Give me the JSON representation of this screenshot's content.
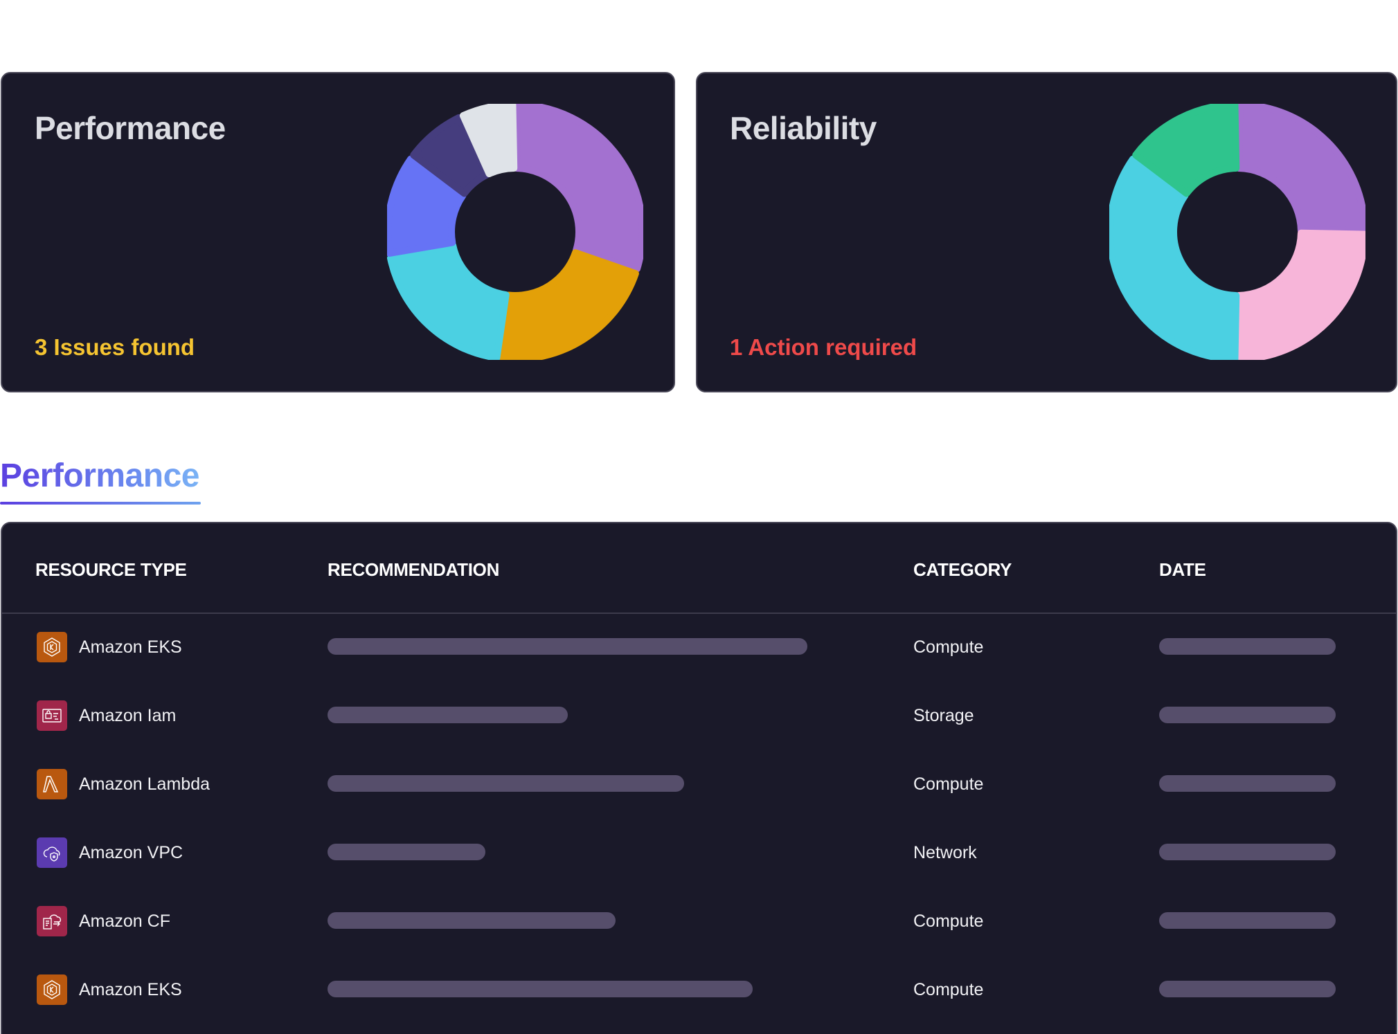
{
  "cards": {
    "performance": {
      "title": "Performance",
      "status": "3 Issues found",
      "status_color": "#f5c431",
      "segments": [
        {
          "color": "#a371d0",
          "value": 30
        },
        {
          "color": "#e3a008",
          "value": 22
        },
        {
          "color": "#4bd0e2",
          "value": 20
        },
        {
          "color": "#6673f5",
          "value": 13
        },
        {
          "color": "#453d7e",
          "value": 8
        },
        {
          "color": "#dfe3e8",
          "value": 7
        }
      ]
    },
    "reliability": {
      "title": "Reliability",
      "status": "1 Action required",
      "status_color": "#ef4a4a",
      "segments": [
        {
          "color": "#a371d0",
          "value": 25
        },
        {
          "color": "#f7b5d9",
          "value": 25
        },
        {
          "color": "#4bd0e2",
          "value": 35
        },
        {
          "color": "#2fc48d",
          "value": 15
        }
      ]
    }
  },
  "section": {
    "title": "Performance"
  },
  "table": {
    "headers": {
      "resource_type": "RESOURCE TYPE",
      "recommendation": "RECOMMENDATION",
      "category": "CATEGORY",
      "date": "DATE"
    },
    "rows": [
      {
        "resource": "Amazon EKS",
        "icon": "eks-icon",
        "icon_color": "#b9580f",
        "category": "Compute",
        "recommendation_fill": 0.7
      },
      {
        "resource": "Amazon Iam",
        "icon": "iam-icon",
        "icon_color": "#a0264a",
        "category": "Storage",
        "recommendation_fill": 0.35
      },
      {
        "resource": "Amazon Lambda",
        "icon": "lambda-icon",
        "icon_color": "#b9580f",
        "category": "Compute",
        "recommendation_fill": 0.52
      },
      {
        "resource": "Amazon VPC",
        "icon": "vpc-icon",
        "icon_color": "#5b3bb0",
        "category": "Network",
        "recommendation_fill": 0.23
      },
      {
        "resource": "Amazon CF",
        "icon": "cloudformation-icon",
        "icon_color": "#a0264a",
        "category": "Compute",
        "recommendation_fill": 0.42
      },
      {
        "resource": "Amazon EKS",
        "icon": "eks-icon",
        "icon_color": "#b9580f",
        "category": "Compute",
        "recommendation_fill": 0.62
      }
    ]
  }
}
